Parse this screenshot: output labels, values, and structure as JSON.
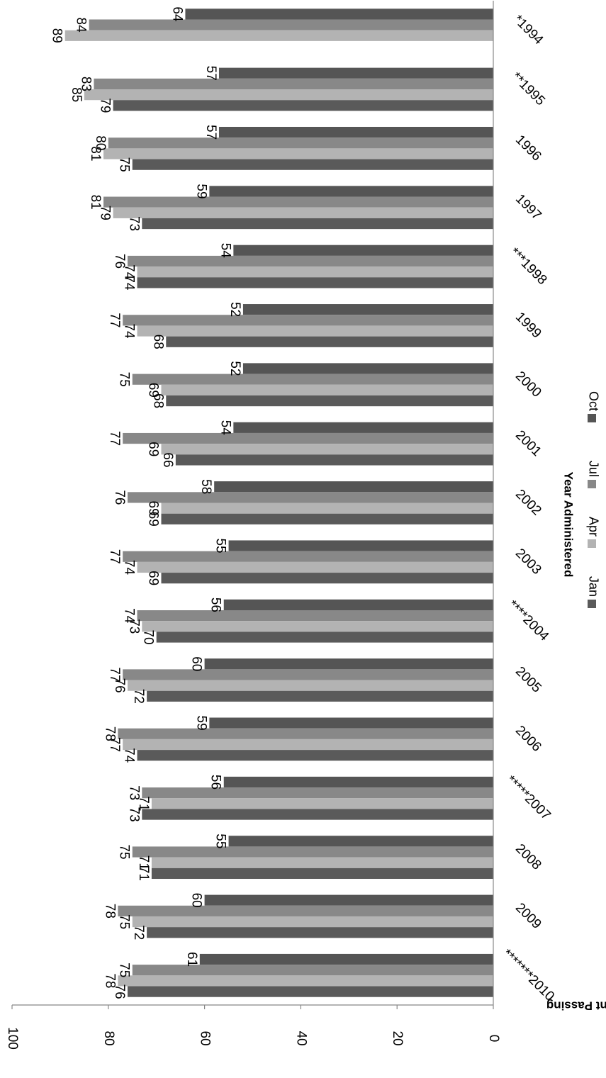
{
  "chart_data": {
    "type": "bar",
    "orientation": "rotated-90",
    "title": "",
    "xlabel": "Year Administered",
    "ylabel": "Percent Passing",
    "ylim": [
      0,
      100
    ],
    "yticks": [
      "0",
      "20",
      "40",
      "60",
      "80",
      "100"
    ],
    "grid": false,
    "legend_position": "bottom",
    "categories": [
      "*1994",
      "**1995",
      "1996",
      "1997",
      "***1998",
      "1999",
      "2000",
      "2001",
      "2002",
      "2003",
      "****2004",
      "2005",
      "2006",
      "*****2007",
      "2008",
      "2009",
      "*******2010"
    ],
    "series": [
      {
        "name": "Jan",
        "color": "#5a5a5a",
        "values": [
          null,
          79,
          75,
          73,
          74,
          68,
          68,
          66,
          69,
          69,
          70,
          72,
          74,
          73,
          71,
          72,
          76
        ]
      },
      {
        "name": "Apr",
        "color": "#b3b3b3",
        "values": [
          89,
          85,
          81,
          79,
          74,
          74,
          69,
          69,
          69,
          74,
          73,
          76,
          77,
          71,
          71,
          75,
          78
        ]
      },
      {
        "name": "Jul",
        "color": "#888888",
        "values": [
          84,
          83,
          80,
          81,
          76,
          77,
          75,
          77,
          76,
          77,
          74,
          77,
          78,
          73,
          75,
          78,
          75
        ]
      },
      {
        "name": "Oct",
        "color": "#555555",
        "values": [
          64,
          57,
          57,
          59,
          54,
          52,
          52,
          54,
          58,
          55,
          56,
          60,
          59,
          56,
          55,
          60,
          61
        ]
      }
    ]
  }
}
